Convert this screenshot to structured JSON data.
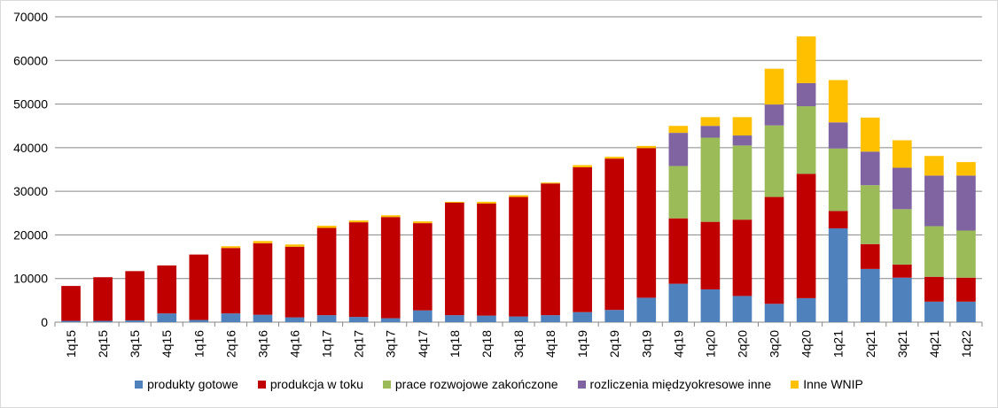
{
  "chart_data": {
    "type": "bar",
    "stacked": true,
    "categories": [
      "1q15",
      "2q15",
      "3q15",
      "4q15",
      "1q16",
      "2q16",
      "3q16",
      "4q16",
      "1q17",
      "2q17",
      "3q17",
      "4q17",
      "1q18",
      "2q18",
      "3q18",
      "4q18",
      "1q19",
      "2q19",
      "3q19",
      "4q19",
      "1q20",
      "2q20",
      "3q20",
      "4q20",
      "1q21",
      "2q21",
      "3q21",
      "4q21",
      "1q22"
    ],
    "series": [
      {
        "name": "produkty gotowe",
        "color": "#4f81bd",
        "values": [
          300,
          300,
          400,
          2000,
          500,
          2000,
          1700,
          1100,
          1600,
          1200,
          900,
          2700,
          1600,
          1500,
          1300,
          1600,
          2300,
          2800,
          5600,
          8800,
          7500,
          6000,
          4200,
          5500,
          21500,
          12200,
          10200,
          4700,
          4700
        ]
      },
      {
        "name": "produkcja w toku",
        "color": "#c00000",
        "values": [
          8000,
          10000,
          11300,
          11000,
          15000,
          15000,
          16400,
          16200,
          20000,
          21700,
          23200,
          20000,
          25800,
          25700,
          27400,
          30200,
          33200,
          34700,
          34300,
          15000,
          15500,
          17500,
          24500,
          28500,
          4000,
          5700,
          3000,
          5700,
          5500
        ]
      },
      {
        "name": "prace rozwojowe zakończone",
        "color": "#9bbb59",
        "values": [
          0,
          0,
          0,
          0,
          0,
          0,
          0,
          0,
          0,
          0,
          0,
          0,
          0,
          0,
          0,
          0,
          0,
          0,
          0,
          12000,
          19300,
          17000,
          16400,
          15500,
          14300,
          13500,
          12700,
          11600,
          10800
        ]
      },
      {
        "name": "rozliczenia międzyokresowe inne",
        "color": "#8064a2",
        "values": [
          0,
          0,
          0,
          0,
          0,
          0,
          0,
          0,
          0,
          0,
          0,
          0,
          0,
          0,
          0,
          0,
          0,
          0,
          0,
          7600,
          2700,
          2300,
          4800,
          5300,
          6000,
          7700,
          9500,
          11600,
          12600
        ]
      },
      {
        "name": "Inne WNIP",
        "color": "#ffc000",
        "values": [
          0,
          0,
          0,
          0,
          0,
          400,
          500,
          500,
          500,
          400,
          400,
          400,
          200,
          400,
          400,
          200,
          500,
          400,
          500,
          1600,
          2000,
          4200,
          8200,
          10700,
          9700,
          7800,
          6300,
          4500,
          3100
        ]
      }
    ],
    "ylim": [
      0,
      70000
    ],
    "yticks": [
      0,
      10000,
      20000,
      30000,
      40000,
      50000,
      60000,
      70000
    ],
    "grid": true,
    "legend_position": "bottom"
  }
}
